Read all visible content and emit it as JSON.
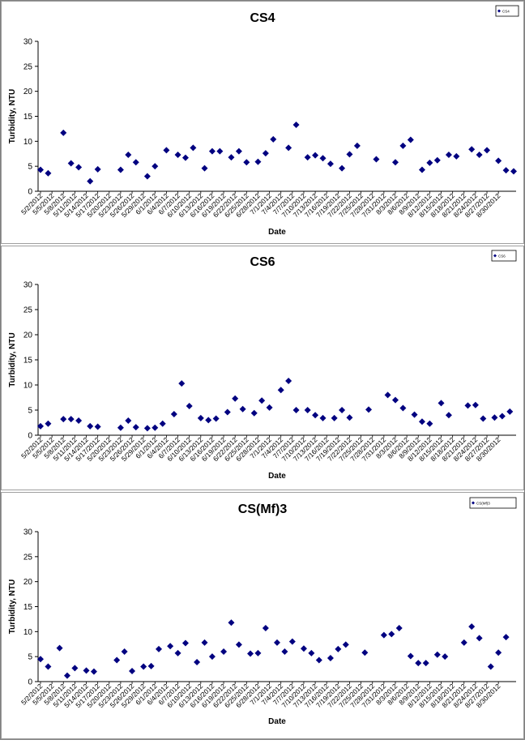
{
  "chart_data": [
    {
      "type": "scatter",
      "title": "CS4",
      "xlabel": "Date",
      "ylabel": "Turbidity, NTU",
      "legend": "top-right",
      "legend_label": "CS4",
      "ylim": [
        0,
        30
      ],
      "yticks": [
        "0",
        "5",
        "10",
        "15",
        "20",
        "25",
        "30"
      ],
      "xticks": [
        "5/2/2012",
        "5/5/2012",
        "5/8/2012",
        "5/11/2012",
        "5/14/2012",
        "5/17/2012",
        "5/20/2012",
        "5/23/2012",
        "5/26/2012",
        "5/29/2012",
        "6/1/2012",
        "6/4/2012",
        "6/7/2012",
        "6/10/2012",
        "6/13/2012",
        "6/16/2012",
        "6/19/2012",
        "6/22/2012",
        "6/25/2012",
        "6/28/2012",
        "7/1/2012",
        "7/4/2012",
        "7/7/2012",
        "7/10/2012",
        "7/13/2012",
        "7/16/2012",
        "7/19/2012",
        "7/22/2012",
        "7/25/2012",
        "7/28/2012",
        "7/31/2012",
        "8/3/2012",
        "8/6/2012",
        "8/9/2012",
        "8/12/2012",
        "8/15/2012",
        "8/18/2012",
        "8/21/2012",
        "8/24/2012",
        "8/27/2012",
        "8/30/2012"
      ],
      "series": [
        {
          "marker": "diamond",
          "color": "#000080",
          "points": [
            [
              "5/2/2012",
              4.3
            ],
            [
              "5/4/2012",
              3.6
            ],
            [
              "5/8/2012",
              11.7
            ],
            [
              "5/10/2012",
              5.6
            ],
            [
              "5/12/2012",
              4.8
            ],
            [
              "5/15/2012",
              2.0
            ],
            [
              "5/17/2012",
              4.4
            ],
            [
              "5/23/2012",
              4.3
            ],
            [
              "5/25/2012",
              7.3
            ],
            [
              "5/27/2012",
              5.8
            ],
            [
              "5/30/2012",
              3.0
            ],
            [
              "6/1/2012",
              5.0
            ],
            [
              "6/4/2012",
              8.2
            ],
            [
              "6/7/2012",
              7.3
            ],
            [
              "6/9/2012",
              6.7
            ],
            [
              "6/11/2012",
              8.7
            ],
            [
              "6/14/2012",
              4.6
            ],
            [
              "6/16/2012",
              8.0
            ],
            [
              "6/18/2012",
              8.0
            ],
            [
              "6/21/2012",
              6.8
            ],
            [
              "6/23/2012",
              8.0
            ],
            [
              "6/25/2012",
              5.8
            ],
            [
              "6/28/2012",
              5.9
            ],
            [
              "6/30/2012",
              7.6
            ],
            [
              "7/2/2012",
              10.4
            ],
            [
              "7/6/2012",
              8.7
            ],
            [
              "7/8/2012",
              13.3
            ],
            [
              "7/11/2012",
              6.8
            ],
            [
              "7/13/2012",
              7.2
            ],
            [
              "7/15/2012",
              6.6
            ],
            [
              "7/17/2012",
              5.5
            ],
            [
              "7/20/2012",
              4.6
            ],
            [
              "7/22/2012",
              7.4
            ],
            [
              "7/24/2012",
              9.1
            ],
            [
              "7/29/2012",
              6.4
            ],
            [
              "8/3/2012",
              5.8
            ],
            [
              "8/5/2012",
              9.1
            ],
            [
              "8/7/2012",
              10.3
            ],
            [
              "8/10/2012",
              4.3
            ],
            [
              "8/12/2012",
              5.7
            ],
            [
              "8/14/2012",
              6.2
            ],
            [
              "8/17/2012",
              7.3
            ],
            [
              "8/19/2012",
              7.0
            ],
            [
              "8/23/2012",
              8.4
            ],
            [
              "8/25/2012",
              7.3
            ],
            [
              "8/27/2012",
              8.2
            ],
            [
              "8/30/2012",
              6.1
            ],
            [
              "9/1/2012",
              4.2
            ],
            [
              "9/3/2012",
              4.0
            ]
          ]
        }
      ]
    },
    {
      "type": "scatter",
      "title": "CS6",
      "xlabel": "Date",
      "ylabel": "Turbidity, NTU",
      "legend": "top-right",
      "legend_label": "CS6",
      "ylim": [
        0,
        30
      ],
      "yticks": [
        "0",
        "5",
        "10",
        "15",
        "20",
        "25",
        "30"
      ],
      "xticks": [
        "5/2/2012",
        "5/5/2012",
        "5/8/2012",
        "5/11/2012",
        "5/14/2012",
        "5/17/2012",
        "5/20/2012",
        "5/23/2012",
        "5/26/2012",
        "5/29/2012",
        "6/1/2012",
        "6/4/2012",
        "6/7/2012",
        "6/10/2012",
        "6/13/2012",
        "6/16/2012",
        "6/19/2012",
        "6/22/2012",
        "6/25/2012",
        "6/28/2012",
        "7/1/2012",
        "7/4/2012",
        "7/7/2012",
        "7/10/2012",
        "7/13/2012",
        "7/16/2012",
        "7/19/2012",
        "7/22/2012",
        "7/25/2012",
        "7/28/2012",
        "7/31/2012",
        "8/3/2012",
        "8/6/2012",
        "8/9/2012",
        "8/12/2012",
        "8/15/2012",
        "8/18/2012",
        "8/21/2012",
        "8/24/2012",
        "8/27/2012",
        "8/30/2012"
      ],
      "series": [
        {
          "marker": "diamond",
          "color": "#000080",
          "points": [
            [
              "5/2/2012",
              1.8
            ],
            [
              "5/4/2012",
              2.3
            ],
            [
              "5/8/2012",
              3.2
            ],
            [
              "5/10/2012",
              3.2
            ],
            [
              "5/12/2012",
              2.9
            ],
            [
              "5/15/2012",
              1.8
            ],
            [
              "5/17/2012",
              1.7
            ],
            [
              "5/23/2012",
              1.5
            ],
            [
              "5/25/2012",
              2.9
            ],
            [
              "5/27/2012",
              1.6
            ],
            [
              "5/30/2012",
              1.4
            ],
            [
              "6/1/2012",
              1.5
            ],
            [
              "6/3/2012",
              2.3
            ],
            [
              "6/6/2012",
              4.2
            ],
            [
              "6/8/2012",
              10.3
            ],
            [
              "6/10/2012",
              5.8
            ],
            [
              "6/13/2012",
              3.4
            ],
            [
              "6/15/2012",
              3.0
            ],
            [
              "6/17/2012",
              3.3
            ],
            [
              "6/20/2012",
              4.6
            ],
            [
              "6/22/2012",
              7.3
            ],
            [
              "6/24/2012",
              5.2
            ],
            [
              "6/27/2012",
              4.4
            ],
            [
              "6/29/2012",
              6.9
            ],
            [
              "7/1/2012",
              5.5
            ],
            [
              "7/4/2012",
              9.0
            ],
            [
              "7/6/2012",
              10.8
            ],
            [
              "7/8/2012",
              5.0
            ],
            [
              "7/11/2012",
              5.0
            ],
            [
              "7/13/2012",
              4.0
            ],
            [
              "7/15/2012",
              3.4
            ],
            [
              "7/18/2012",
              3.4
            ],
            [
              "7/20/2012",
              5.0
            ],
            [
              "7/22/2012",
              3.5
            ],
            [
              "7/27/2012",
              5.1
            ],
            [
              "8/1/2012",
              8.0
            ],
            [
              "8/3/2012",
              7.0
            ],
            [
              "8/5/2012",
              5.4
            ],
            [
              "8/8/2012",
              4.1
            ],
            [
              "8/10/2012",
              2.7
            ],
            [
              "8/12/2012",
              2.3
            ],
            [
              "8/15/2012",
              6.4
            ],
            [
              "8/17/2012",
              4.0
            ],
            [
              "8/22/2012",
              5.9
            ],
            [
              "8/24/2012",
              6.0
            ],
            [
              "8/26/2012",
              3.3
            ],
            [
              "8/29/2012",
              3.5
            ],
            [
              "8/31/2012",
              3.8
            ],
            [
              "9/2/2012",
              4.7
            ]
          ]
        }
      ]
    },
    {
      "type": "scatter",
      "title": "CS(Mf)3",
      "xlabel": "Date",
      "ylabel": "Turbidity, NTU",
      "legend": "top-right",
      "legend_label": "CS(Mf)3",
      "ylim": [
        0,
        30
      ],
      "yticks": [
        "0",
        "5",
        "10",
        "15",
        "20",
        "25",
        "30"
      ],
      "xticks": [
        "5/2/2012",
        "5/5/2012",
        "5/8/2012",
        "5/11/2012",
        "5/14/2012",
        "5/17/2012",
        "5/20/2012",
        "5/23/2012",
        "5/26/2012",
        "5/29/2012",
        "6/1/2012",
        "6/4/2012",
        "6/7/2012",
        "6/10/2012",
        "6/13/2012",
        "6/16/2012",
        "6/19/2012",
        "6/22/2012",
        "6/25/2012",
        "6/28/2012",
        "7/1/2012",
        "7/4/2012",
        "7/7/2012",
        "7/10/2012",
        "7/13/2012",
        "7/16/2012",
        "7/19/2012",
        "7/22/2012",
        "7/25/2012",
        "7/28/2012",
        "7/31/2012",
        "8/3/2012",
        "8/6/2012",
        "8/9/2012",
        "8/12/2012",
        "8/15/2012",
        "8/18/2012",
        "8/21/2012",
        "8/24/2012",
        "8/27/2012",
        "8/30/2012"
      ],
      "series": [
        {
          "marker": "diamond",
          "color": "#000080",
          "points": [
            [
              "5/2/2012",
              4.5
            ],
            [
              "5/4/2012",
              3.0
            ],
            [
              "5/7/2012",
              6.7
            ],
            [
              "5/9/2012",
              1.2
            ],
            [
              "5/11/2012",
              2.7
            ],
            [
              "5/14/2012",
              2.2
            ],
            [
              "5/16/2012",
              2.0
            ],
            [
              "5/22/2012",
              4.3
            ],
            [
              "5/24/2012",
              6.0
            ],
            [
              "5/26/2012",
              2.1
            ],
            [
              "5/29/2012",
              3.0
            ],
            [
              "5/31/2012",
              3.1
            ],
            [
              "6/2/2012",
              6.5
            ],
            [
              "6/5/2012",
              7.1
            ],
            [
              "6/7/2012",
              5.7
            ],
            [
              "6/9/2012",
              7.7
            ],
            [
              "6/12/2012",
              3.9
            ],
            [
              "6/14/2012",
              7.8
            ],
            [
              "6/16/2012",
              5.0
            ],
            [
              "6/19/2012",
              6.0
            ],
            [
              "6/21/2012",
              11.8
            ],
            [
              "6/23/2012",
              7.4
            ],
            [
              "6/26/2012",
              5.6
            ],
            [
              "6/28/2012",
              5.7
            ],
            [
              "6/30/2012",
              10.7
            ],
            [
              "7/3/2012",
              7.8
            ],
            [
              "7/5/2012",
              6.0
            ],
            [
              "7/7/2012",
              8.0
            ],
            [
              "7/10/2012",
              6.6
            ],
            [
              "7/12/2012",
              5.7
            ],
            [
              "7/14/2012",
              4.3
            ],
            [
              "7/17/2012",
              4.7
            ],
            [
              "7/19/2012",
              6.5
            ],
            [
              "7/21/2012",
              7.4
            ],
            [
              "7/26/2012",
              5.8
            ],
            [
              "7/31/2012",
              9.3
            ],
            [
              "8/2/2012",
              9.5
            ],
            [
              "8/4/2012",
              10.7
            ],
            [
              "8/7/2012",
              5.1
            ],
            [
              "8/9/2012",
              3.7
            ],
            [
              "8/11/2012",
              3.7
            ],
            [
              "8/14/2012",
              5.4
            ],
            [
              "8/16/2012",
              5.0
            ],
            [
              "8/21/2012",
              7.8
            ],
            [
              "8/23/2012",
              11.0
            ],
            [
              "8/25/2012",
              8.7
            ],
            [
              "8/28/2012",
              3.0
            ],
            [
              "8/30/2012",
              5.8
            ],
            [
              "9/1/2012",
              8.9
            ]
          ]
        }
      ]
    }
  ]
}
